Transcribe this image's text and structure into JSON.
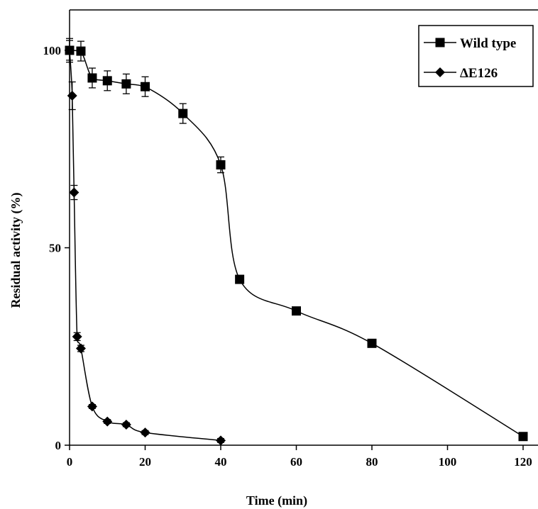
{
  "chart_data": {
    "type": "line",
    "title": "",
    "xlabel": "Time (min)",
    "ylabel": "Residual activity (%)",
    "xlim": [
      0,
      120
    ],
    "ylim": [
      0,
      110
    ],
    "x_ticks": [
      "0",
      "20",
      "40",
      "60",
      "80",
      "100",
      "120"
    ],
    "y_ticks": [
      "0",
      "50",
      "100"
    ],
    "grid": false,
    "legend_position": "top-right",
    "smoothed": true,
    "series": [
      {
        "name": "Wild type",
        "marker": "square",
        "color": "#000000",
        "points": [
          {
            "x": 0,
            "y": 100,
            "err": 2.5
          },
          {
            "x": 3,
            "y": 99.8,
            "err": 2.5
          },
          {
            "x": 6,
            "y": 93,
            "err": 2.5
          },
          {
            "x": 10,
            "y": 92.3,
            "err": 2.5
          },
          {
            "x": 15,
            "y": 91.5,
            "err": 2.5
          },
          {
            "x": 20,
            "y": 90.8,
            "err": 2.5
          },
          {
            "x": 30,
            "y": 84,
            "err": 2.5
          },
          {
            "x": 40,
            "y": 71,
            "err": 2
          },
          {
            "x": 45,
            "y": 42,
            "err": 1
          },
          {
            "x": 60,
            "y": 34,
            "err": 0.8
          },
          {
            "x": 80,
            "y": 25.8,
            "err": 0.6
          },
          {
            "x": 120,
            "y": 2.2,
            "err": 0.5
          }
        ]
      },
      {
        "name": "ΔE126",
        "marker": "diamond",
        "color": "#000000",
        "points": [
          {
            "x": 0,
            "y": 100,
            "err": 3
          },
          {
            "x": 0.7,
            "y": 88.5,
            "err": 3.5
          },
          {
            "x": 1.2,
            "y": 64,
            "err": 1.8
          },
          {
            "x": 2,
            "y": 27.5,
            "err": 1
          },
          {
            "x": 3,
            "y": 24.5,
            "err": 0.8
          },
          {
            "x": 6,
            "y": 9.8,
            "err": 0.5
          },
          {
            "x": 10,
            "y": 6,
            "err": 0.5
          },
          {
            "x": 15,
            "y": 5.2,
            "err": 0.5
          },
          {
            "x": 20,
            "y": 3.2,
            "err": 0.5
          },
          {
            "x": 40,
            "y": 1.2,
            "err": 0.5
          }
        ]
      }
    ]
  }
}
